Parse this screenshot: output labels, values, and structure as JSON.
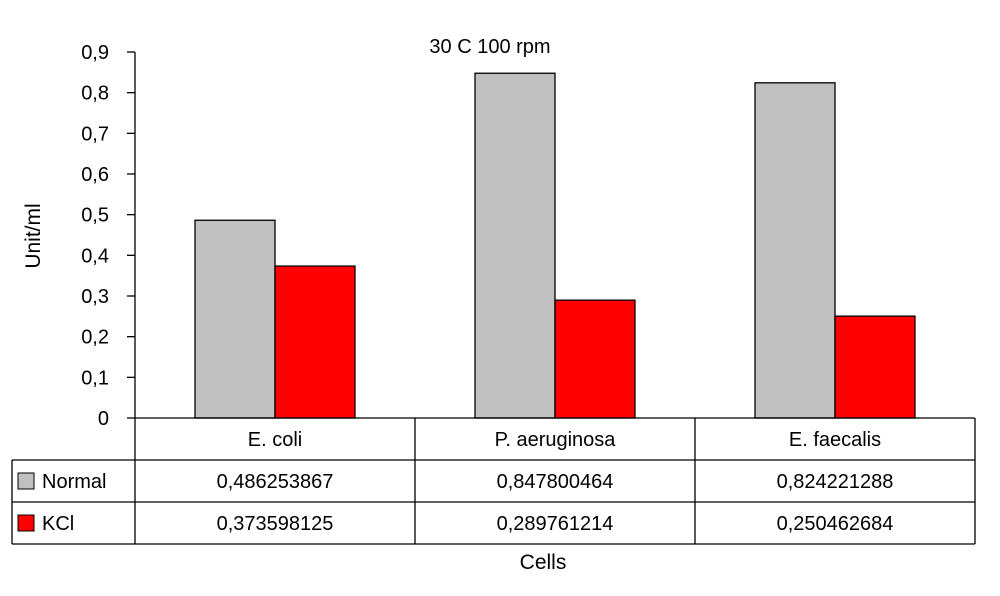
{
  "chart_data": {
    "type": "bar",
    "title": "30 C 100 rpm",
    "xlabel": "Cells",
    "ylabel": "Unit/ml",
    "ylim": [
      0,
      0.9
    ],
    "yticks": [
      "0",
      "0,1",
      "0,2",
      "0,3",
      "0,4",
      "0,5",
      "0,6",
      "0,7",
      "0,8",
      "0,9"
    ],
    "categories": [
      "E. coli",
      "P. aeruginosa",
      "E. faecalis"
    ],
    "series": [
      {
        "name": "Normal",
        "color": "#c0c0c0",
        "values": [
          0.486253867,
          0.847800464,
          0.824221288
        ],
        "labels": [
          "0,486253867",
          "0,847800464",
          "0,824221288"
        ]
      },
      {
        "name": "KCl",
        "color": "#ff0000",
        "values": [
          0.373598125,
          0.289761214,
          0.250462684
        ],
        "labels": [
          "0,373598125",
          "0,289761214",
          "0,250462684"
        ]
      }
    ],
    "data_table": true,
    "grid": false
  }
}
